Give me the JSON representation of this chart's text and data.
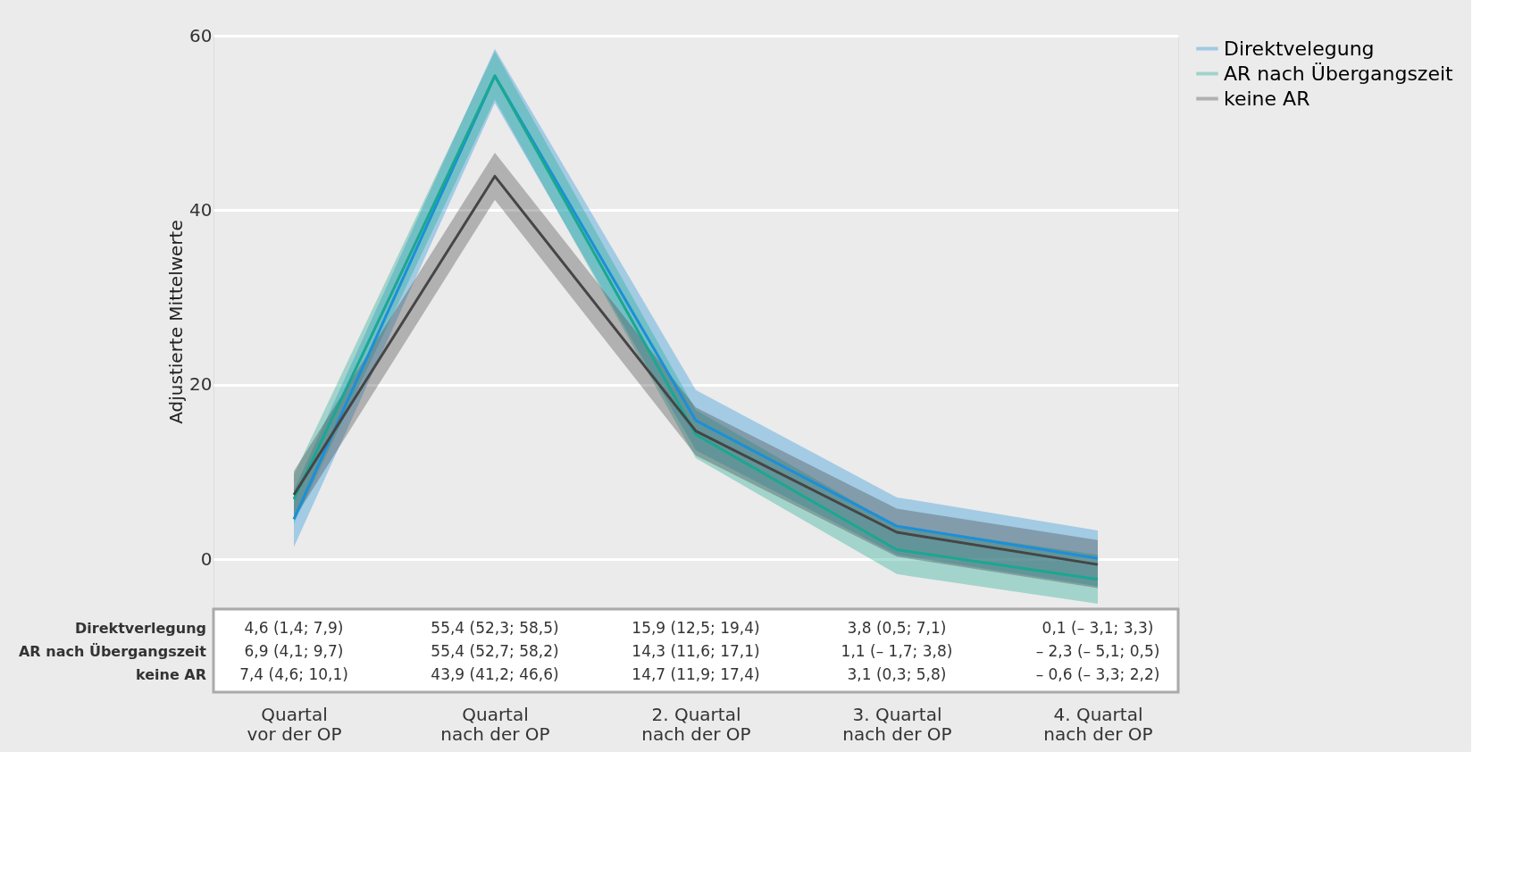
{
  "chart_data": {
    "type": "line",
    "ylabel": "Adjustierte Mittelwerte",
    "categories": [
      "Quartal\nvor der OP",
      "Quartal\nnach der OP",
      "2. Quartal\nnach der OP",
      "3. Quartal\nnach der OP",
      "4. Quartal\nnach der OP"
    ],
    "series": [
      {
        "name": "Direktvelegung",
        "color": "#1c8fd8",
        "values": [
          4.6,
          55.4,
          15.9,
          3.8,
          0.1
        ],
        "lower": [
          1.4,
          52.3,
          12.5,
          0.5,
          -3.1
        ],
        "upper": [
          7.9,
          58.5,
          19.4,
          7.1,
          3.3
        ],
        "value_labels": [
          "4,6 (1,4; 7,9)",
          "55,4 (52,3; 58,5)",
          "15,9 (12,5; 19,4)",
          "3,8 (0,5; 7,1)",
          "0,1 (– 3,1; 3,3)"
        ]
      },
      {
        "name": "AR nach Übergangszeit",
        "color": "#1aa890",
        "values": [
          6.9,
          55.4,
          14.3,
          1.1,
          -2.3
        ],
        "lower": [
          4.1,
          52.7,
          11.6,
          -1.7,
          -5.1
        ],
        "upper": [
          9.7,
          58.2,
          17.1,
          3.8,
          0.5
        ],
        "value_labels": [
          "6,9 (4,1; 9,7)",
          "55,4 (52,7; 58,2)",
          "14,3 (11,6; 17,1)",
          "1,1 (– 1,7; 3,8)",
          "– 2,3 (– 5,1; 0,5)"
        ]
      },
      {
        "name": "keine AR",
        "color": "#454545",
        "values": [
          7.4,
          43.9,
          14.7,
          3.1,
          -0.6
        ],
        "lower": [
          4.6,
          41.2,
          11.9,
          0.3,
          -3.3
        ],
        "upper": [
          10.1,
          46.6,
          17.4,
          5.8,
          2.2
        ],
        "value_labels": [
          "7,4 (4,6; 10,1)",
          "43,9 (41,2; 46,6)",
          "14,7 (11,9; 17,4)",
          "3,1 (0,3; 5,8)",
          "– 0,6 (– 3,3; 2,2)"
        ]
      }
    ],
    "annotations": [
      "Direktverlegung",
      "AR nach Übergangszeit",
      "keine AR"
    ],
    "ylim": [
      -5.5,
      60
    ],
    "yticks": [
      0,
      20,
      40,
      60
    ],
    "grid": "y",
    "legend": "right",
    "marker": "none",
    "line_style": "solid"
  }
}
